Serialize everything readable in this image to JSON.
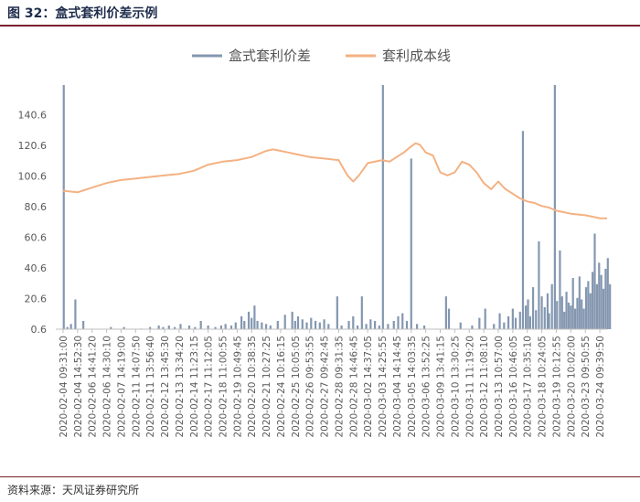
{
  "figure_title": "图 32：盒式套利价差示例",
  "source": "资料来源：天风证券研究所",
  "chart_data": {
    "type": "bar+line",
    "title": "",
    "xlabel": "",
    "ylabel": "",
    "ylim": [
      0.6,
      160
    ],
    "yticks": [
      "0.6",
      "20.6",
      "40.6",
      "60.6",
      "80.6",
      "100.6",
      "120.6",
      "140.6"
    ],
    "grid": false,
    "legend_position": "top-center",
    "legend": [
      {
        "name": "盒式套利价差",
        "color": "#8497b0",
        "kind": "bar"
      },
      {
        "name": "套利成本线",
        "color": "#f4b183",
        "kind": "line"
      }
    ],
    "x_tick_labels": [
      "2020-02-04 09:31:00",
      "2020-02-04 14:52:30",
      "2020-02-06 14:41:20",
      "2020-02-06 14:30:10",
      "2020-02-07 14:19:00",
      "2020-02-11 14:07:50",
      "2020-02-11 13:56:40",
      "2020-02-12 13:45:30",
      "2020-02-13 13:34:20",
      "2020-02-14 11:23:15",
      "2020-02-17 11:12:05",
      "2020-02-18 11:00:55",
      "2020-02-19 10:49:45",
      "2020-02-20 10:38:35",
      "2020-02-21 10:27:25",
      "2020-02-24 10:16:15",
      "2020-02-25 10:05:05",
      "2020-02-26 09:53:55",
      "2020-02-27 09:42:45",
      "2020-02-28 09:31:35",
      "2020-02-28 14:46:45",
      "2020-03-02 14:37:05",
      "2020-03-03 14:25:55",
      "2020-03-04 14:14:45",
      "2020-03-05 14:03:35",
      "2020-03-06 13:52:25",
      "2020-03-09 13:41:15",
      "2020-03-10 13:30:25",
      "2020-03-11 11:19:20",
      "2020-03-12 11:08:10",
      "2020-03-13 10:57:00",
      "2020-03-16 10:46:05",
      "2020-03-17 10:35:10",
      "2020-03-18 10:24:05",
      "2020-03-19 10:12:55",
      "2020-03-20 10:02:00",
      "2020-03-23 09:50:55",
      "2020-03-24 09:39:50"
    ],
    "series": [
      {
        "name": "套利成本线",
        "type": "line",
        "color": "#f4b183",
        "x": [
          0,
          1,
          2,
          3,
          4,
          5,
          6,
          7,
          8,
          9,
          10,
          11,
          12,
          13,
          14,
          14.5,
          15,
          15.5,
          16,
          17,
          18,
          19,
          19.3,
          19.6,
          20,
          20.4,
          21,
          22,
          22.5,
          23,
          23.5,
          24,
          24.3,
          24.6,
          25,
          25.5,
          26,
          26.5,
          27,
          27.5,
          28,
          28.5,
          29,
          29.5,
          30,
          30.5,
          31,
          31.5,
          32,
          32.5,
          33,
          33.5,
          34,
          34.5,
          35,
          36,
          37,
          37.5
        ],
        "values": [
          91,
          90,
          93,
          96,
          98,
          99,
          100,
          101,
          102,
          104,
          108,
          110,
          111,
          113,
          117,
          118,
          117,
          116,
          115,
          113,
          112,
          111,
          106,
          101,
          97,
          101,
          109,
          111,
          110,
          113,
          116,
          120,
          122,
          121,
          116,
          114,
          103,
          101,
          103,
          110,
          108,
          103,
          96,
          92,
          97,
          92,
          89,
          86,
          84,
          83,
          81,
          80,
          78,
          77,
          76,
          75,
          73,
          73
        ]
      },
      {
        "name": "盒式套利价差",
        "type": "bar",
        "color": "#8497b0",
        "x": [
          0.05,
          0.3,
          0.55,
          0.85,
          1.4,
          3.3,
          4.2,
          5.4,
          6.0,
          6.6,
          6.9,
          7.3,
          7.7,
          8.1,
          8.7,
          9.1,
          9.5,
          10.0,
          10.5,
          10.9,
          11.2,
          11.6,
          11.9,
          12.3,
          12.5,
          12.8,
          13.0,
          13.2,
          13.4,
          13.7,
          14.0,
          14.3,
          14.8,
          15.3,
          15.8,
          16.0,
          16.2,
          16.5,
          16.8,
          17.1,
          17.4,
          17.7,
          18.0,
          18.3,
          18.9,
          19.2,
          19.7,
          20.0,
          20.3,
          20.6,
          20.9,
          21.2,
          21.5,
          21.8,
          22.05,
          22.4,
          22.8,
          23.1,
          23.4,
          23.7,
          24.0,
          24.4,
          24.9,
          26.4,
          26.6,
          27.4,
          28.2,
          28.7,
          29.1,
          29.7,
          30.1,
          30.4,
          30.7,
          31.0,
          31.2,
          31.5,
          31.7,
          31.9,
          32.05,
          32.2,
          32.4,
          32.6,
          32.8,
          33.0,
          33.2,
          33.4,
          33.5,
          33.7,
          33.9,
          34.05,
          34.25,
          34.4,
          34.55,
          34.7,
          34.85,
          35.0,
          35.15,
          35.3,
          35.45,
          35.6,
          35.75,
          35.9,
          36.05,
          36.2,
          36.35,
          36.5,
          36.65,
          36.8,
          36.95,
          37.1,
          37.25,
          37.4,
          37.55,
          37.7
        ],
        "values": [
          160,
          2,
          4,
          20,
          6,
          2,
          2,
          1,
          2,
          3,
          2,
          3,
          2,
          4,
          3,
          2,
          6,
          3,
          2,
          3,
          4,
          3,
          5,
          9,
          6,
          12,
          8,
          16,
          6,
          5,
          4,
          3,
          6,
          10,
          12,
          6,
          9,
          7,
          5,
          8,
          6,
          5,
          7,
          4,
          22,
          3,
          6,
          9,
          3,
          22,
          4,
          7,
          6,
          3,
          160,
          4,
          6,
          9,
          11,
          6,
          112,
          4,
          3,
          22,
          14,
          5,
          3,
          8,
          14,
          4,
          11,
          5,
          9,
          14,
          8,
          12,
          130,
          16,
          20,
          9,
          28,
          13,
          58,
          22,
          15,
          24,
          11,
          30,
          160,
          19,
          52,
          22,
          12,
          25,
          18,
          16,
          34,
          14,
          21,
          35,
          20,
          14,
          28,
          32,
          24,
          38,
          63,
          30,
          44,
          36,
          27,
          40,
          47,
          30
        ]
      }
    ]
  }
}
